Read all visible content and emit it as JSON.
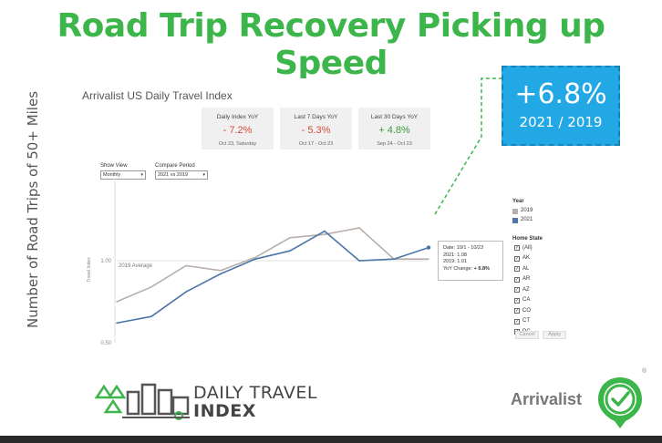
{
  "headline": "Road Trip Recovery Picking up Speed",
  "side_label": "Number of Road Trips of 50+ Miles",
  "dashboard": {
    "title": "Arrivalist US Daily Travel Index",
    "kpis": [
      {
        "label": "Daily Index YoY",
        "value": "- 7.2%",
        "date": "Oct 23, Saturday",
        "tone": "neg"
      },
      {
        "label": "Last 7 Days YoY",
        "value": "- 5.3%",
        "date": "Oct 17 - Oct 23",
        "tone": "neg"
      },
      {
        "label": "Last 30 Days YoY",
        "value": "+ 4.8%",
        "date": "Sep 24 - Oct 23",
        "tone": "pos"
      }
    ],
    "controls": {
      "show_view_label": "Show View",
      "show_view_value": "Monthly",
      "compare_label": "Compare Period",
      "compare_value": "2021 vs 2019"
    },
    "tooltip": {
      "line1": "Date: 10/1 - 10/23",
      "line2": "2021: 1.08",
      "line3": "2019: 1.01",
      "line4_label": "YoY Change: ",
      "line4_value": "+ 6.8%"
    },
    "legend": {
      "year_title": "Year",
      "years": [
        {
          "label": "2019",
          "color": "#b8afaa"
        },
        {
          "label": "2021",
          "color": "#4a76a8"
        }
      ],
      "state_title": "Home State",
      "states": [
        "(All)",
        "AK",
        "AL",
        "AR",
        "AZ",
        "CA",
        "CO",
        "CT",
        "DC"
      ],
      "cancel_label": "Cancel",
      "apply_label": "Apply"
    }
  },
  "callout": {
    "big": "+6.8%",
    "sub": "2021 / 2019"
  },
  "logo": {
    "line1": "DAILY TRAVEL",
    "line2": "INDEX"
  },
  "brand": "Arrivalist",
  "chart_data": {
    "type": "line",
    "ylabel": "Travel Index",
    "ylim": [
      0.5,
      1.5
    ],
    "yticks": [
      {
        "value": 1.0,
        "label": "1.00"
      },
      {
        "value": 0.5,
        "label": "0.50"
      }
    ],
    "reference_line": {
      "value": 1.0,
      "label": "2019 Average"
    },
    "x": [
      1,
      2,
      3,
      4,
      5,
      6,
      7,
      8,
      9,
      10
    ],
    "series": [
      {
        "name": "2019",
        "color": "#b8afaa",
        "values": [
          0.75,
          0.84,
          0.97,
          0.94,
          1.02,
          1.14,
          1.16,
          1.2,
          1.01,
          1.01
        ]
      },
      {
        "name": "2021",
        "color": "#4a76a8",
        "values": [
          0.62,
          0.66,
          0.81,
          0.92,
          1.01,
          1.06,
          1.18,
          1.0,
          1.01,
          1.08
        ]
      }
    ],
    "grid": false,
    "legend_position": "right"
  }
}
